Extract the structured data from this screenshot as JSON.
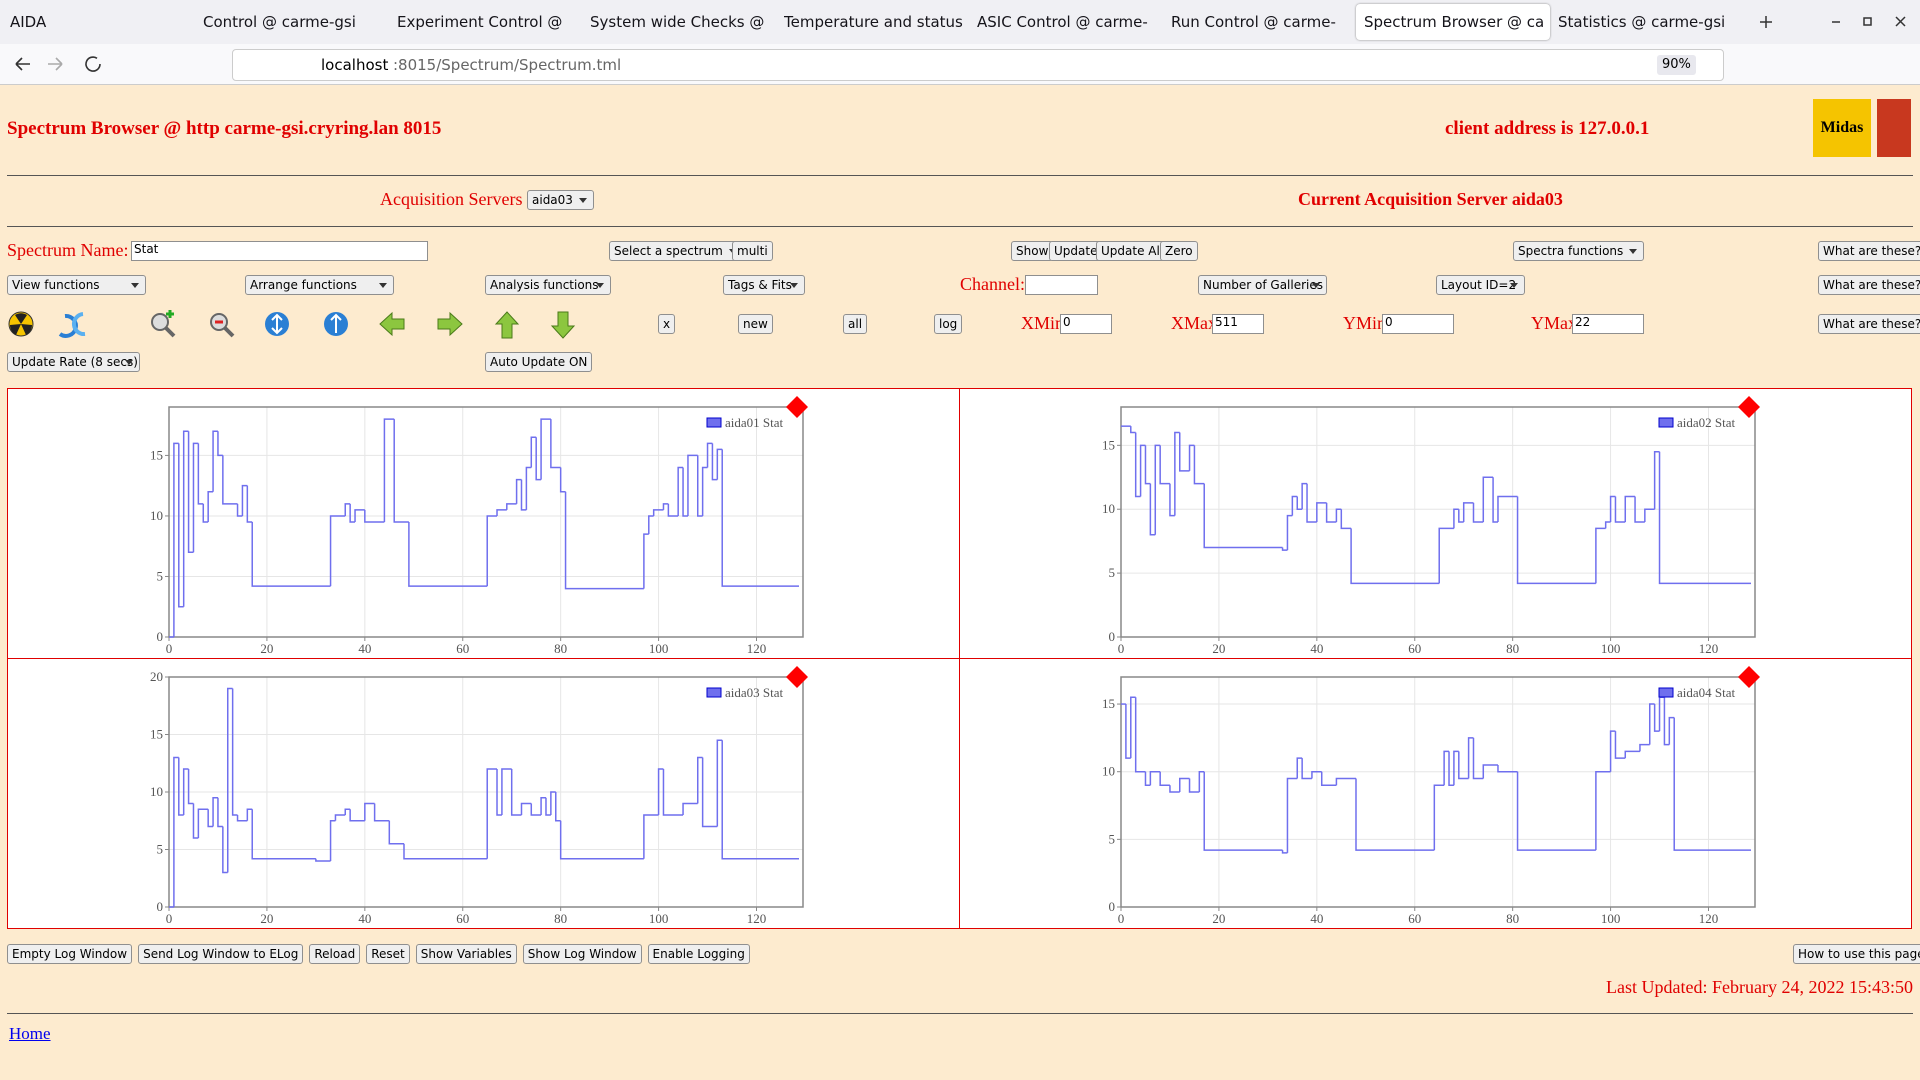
{
  "browser": {
    "tabs": [
      "AIDA",
      "Control @ carme-gsi",
      "Experiment Control @ ca",
      "System wide Checks @",
      "Temperature and status",
      "ASIC Control @ carme-g",
      "Run Control @ carme-gs",
      "Spectrum Browser @ ca",
      "Statistics @ carme-gsi"
    ],
    "url_host": "localhost",
    "url_rest": ":8015/Spectrum/Spectrum.tml",
    "zoom": "90%"
  },
  "header": {
    "title": "Spectrum Browser @ http carme-gsi.cryring.lan 8015",
    "client": "client address is 127.0.0.1",
    "logo": "Midas"
  },
  "servers": {
    "label": "Acquisition Servers",
    "selected": "aida03",
    "current": "Current Acquisition Server aida03"
  },
  "row1": {
    "spectrum_label": "Spectrum Name:",
    "spectrum_value": "Stat",
    "select": "Select a spectrum",
    "multi": "multi",
    "show": "Show",
    "update": "Update",
    "update_all": "Update All",
    "zero": "Zero",
    "spectra_functions": "Spectra functions",
    "help": "What are these?"
  },
  "row2": {
    "view": "View functions",
    "arrange": "Arrange functions",
    "analysis": "Analysis functions",
    "tags": "Tags & Fits",
    "channel": "Channel:",
    "galleries": "Number of Galleries",
    "layout": "Layout ID=2",
    "help": "What are these?"
  },
  "row3": {
    "x": "x",
    "new": "new",
    "all": "all",
    "log": "log",
    "xmin_label": "XMin",
    "xmin": "0",
    "xmax_label": "XMax",
    "xmax": "511",
    "ymin_label": "YMin",
    "ymin": "0",
    "ymax_label": "YMax",
    "ymax": "22",
    "help": "What are these?"
  },
  "row4": {
    "rate": "Update Rate (8 secs)",
    "auto": "Auto Update ON"
  },
  "chart_data": [
    {
      "type": "line",
      "xlim": [
        0,
        129.5
      ],
      "ylim": [
        0,
        19
      ],
      "xticks": [
        0,
        20,
        40,
        60,
        80,
        100,
        120
      ],
      "yticks": [
        0,
        5,
        10,
        15
      ],
      "grid": true,
      "x": [
        0,
        1,
        2,
        3,
        4,
        5,
        6,
        7,
        8,
        9,
        10,
        11,
        14,
        15,
        16,
        17,
        33,
        36,
        37,
        38,
        40,
        44,
        46,
        49,
        65,
        67,
        69,
        71,
        72,
        73,
        74,
        75,
        76,
        78,
        80,
        81,
        97,
        98,
        99,
        101,
        102,
        104,
        105,
        106,
        108,
        109,
        110,
        111,
        112,
        113
      ],
      "series": [
        {
          "name": "aida01 Stat",
          "color": "#6f6fee",
          "values": [
            0,
            16,
            2.5,
            17,
            7,
            16,
            11,
            9.5,
            12,
            17,
            15,
            11,
            10,
            12.5,
            9.5,
            4.2,
            10,
            11,
            9.5,
            10.5,
            9.5,
            18,
            9.5,
            4.2,
            10,
            10.5,
            11,
            13,
            10.5,
            14,
            16.5,
            13,
            18,
            14,
            12,
            4,
            8.5,
            10,
            10.5,
            11,
            10,
            14,
            10,
            15,
            10,
            14,
            16,
            13,
            15.5,
            4.2
          ]
        }
      ]
    },
    {
      "type": "line",
      "xlim": [
        0,
        129.5
      ],
      "ylim": [
        0,
        18
      ],
      "xticks": [
        0,
        20,
        40,
        60,
        80,
        100,
        120
      ],
      "yticks": [
        0,
        5,
        10,
        15
      ],
      "grid": true,
      "x": [
        0,
        2,
        3,
        4,
        5,
        6,
        7,
        8,
        10,
        11,
        12,
        14,
        15,
        17,
        33,
        34,
        35,
        36,
        37,
        38,
        40,
        42,
        44,
        45,
        47,
        65,
        68,
        69,
        70,
        72,
        74,
        76,
        77,
        81,
        97,
        99,
        100,
        101,
        103,
        105,
        107,
        109,
        110
      ],
      "series": [
        {
          "name": "aida02 Stat",
          "color": "#6f6fee",
          "values": [
            16.5,
            16,
            11,
            15,
            12,
            8,
            15,
            12,
            9.5,
            16,
            13,
            15,
            12,
            7,
            6.8,
            9.5,
            11,
            10,
            12,
            9,
            10.5,
            9,
            10,
            8.5,
            4.2,
            8.5,
            10,
            9,
            10.5,
            9,
            12.5,
            9,
            11,
            4.2,
            8.5,
            9,
            11,
            9,
            11,
            9,
            10,
            14.5,
            4.2
          ]
        }
      ]
    },
    {
      "type": "line",
      "xlim": [
        0,
        129.5
      ],
      "ylim": [
        0,
        20
      ],
      "xticks": [
        0,
        20,
        40,
        60,
        80,
        100,
        120
      ],
      "yticks": [
        0,
        5,
        10,
        15,
        20
      ],
      "grid": true,
      "x": [
        0,
        1,
        2,
        3,
        4,
        5,
        6,
        8,
        9,
        10,
        11,
        12,
        13,
        14,
        16,
        17,
        30,
        33,
        34,
        36,
        37,
        40,
        42,
        45,
        48,
        65,
        67,
        68,
        70,
        72,
        74,
        76,
        77,
        78,
        79,
        80,
        97,
        100,
        101,
        105,
        108,
        109,
        112,
        113
      ],
      "series": [
        {
          "name": "aida03 Stat",
          "color": "#6f6fee",
          "values": [
            0,
            13,
            8,
            12,
            9,
            6,
            8.5,
            7,
            9.5,
            7,
            3,
            19,
            8,
            7.5,
            8.5,
            4.2,
            4,
            7.5,
            8,
            8.5,
            7.5,
            9,
            7.5,
            5.5,
            4.2,
            12,
            8,
            12,
            8,
            9,
            8,
            9.5,
            8,
            10,
            7.5,
            4.2,
            8,
            12,
            8,
            9,
            13,
            7,
            14.5,
            4.2
          ]
        }
      ]
    },
    {
      "type": "line",
      "xlim": [
        0,
        129.5
      ],
      "ylim": [
        0,
        17
      ],
      "xticks": [
        0,
        20,
        40,
        60,
        80,
        100,
        120
      ],
      "yticks": [
        0,
        5,
        10,
        15
      ],
      "grid": true,
      "x": [
        0,
        1,
        2,
        3,
        5,
        6,
        8,
        10,
        12,
        14,
        16,
        17,
        33,
        34,
        36,
        37,
        39,
        41,
        44,
        48,
        64,
        66,
        67,
        68,
        69,
        71,
        72,
        74,
        77,
        81,
        97,
        100,
        101,
        103,
        106,
        108,
        109,
        110,
        111,
        112,
        113
      ],
      "series": [
        {
          "name": "aida04 Stat",
          "color": "#6f6fee",
          "values": [
            15,
            11,
            15.5,
            10,
            9,
            10,
            9,
            8.5,
            9.5,
            8.5,
            10,
            4.2,
            4,
            9.5,
            11,
            9.5,
            10,
            9,
            9.5,
            4.2,
            9,
            11.5,
            9,
            11.5,
            9.5,
            12.5,
            9.5,
            10.5,
            10,
            4.2,
            10,
            13,
            11,
            11.5,
            12,
            15,
            13,
            15.5,
            12,
            14,
            4.2
          ]
        }
      ]
    }
  ],
  "footer": {
    "buttons": [
      "Empty Log Window",
      "Send Log Window to ELog",
      "Reload",
      "Reset",
      "Show Variables",
      "Show Log Window",
      "Enable Logging"
    ],
    "howto": "How to use this page",
    "last_updated": "Last Updated: February 24, 2022 15:43:50",
    "home": "Home"
  }
}
